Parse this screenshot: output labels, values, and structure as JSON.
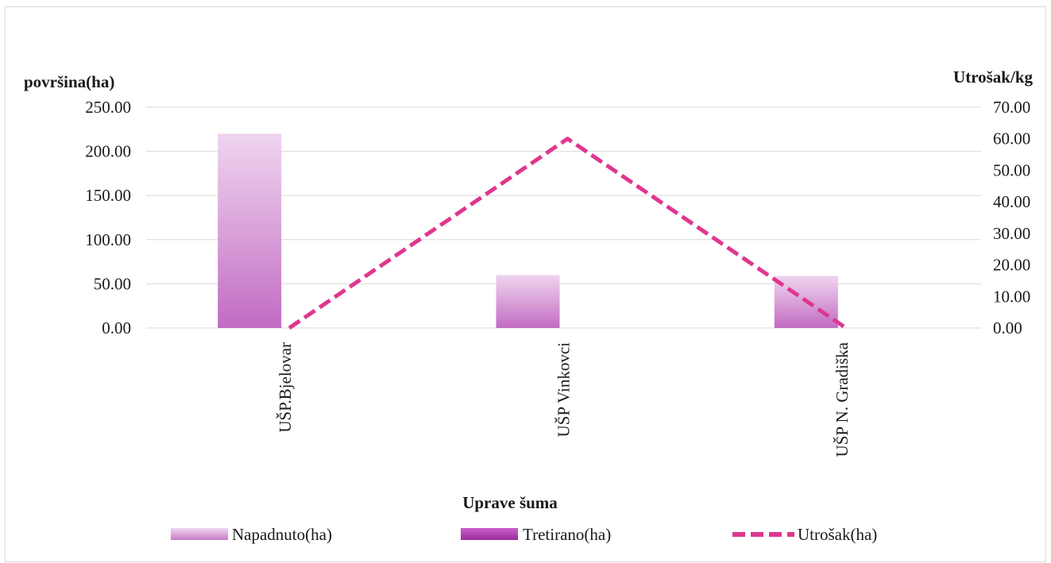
{
  "chart_data": {
    "type": "bar",
    "categories": [
      "UŠP.Bjelovar",
      "UŠP Vinkovci",
      "UŠP N. Gradiška"
    ],
    "series": [
      {
        "name": "Napadnuto(ha)",
        "type": "bar",
        "axis": "left",
        "values": [
          220.0,
          60.0,
          59.0
        ],
        "color": "#c877c8"
      },
      {
        "name": "Tretirano(ha)",
        "type": "bar",
        "axis": "left",
        "values": [
          0.0,
          0.0,
          0.0
        ],
        "color": "#b03cb0"
      },
      {
        "name": "Utrošak(ha)",
        "type": "line",
        "axis": "right",
        "style": "dashed",
        "values": [
          0.0,
          60.0,
          0.0
        ],
        "color": "#e0368e"
      }
    ],
    "ylabel": "površina(ha)",
    "y2label": "Utrošak/kg",
    "xlabel": "Uprave šuma",
    "ylim": [
      0,
      250
    ],
    "y2lim": [
      0,
      70
    ],
    "yticks": [
      "0.00",
      "50.00",
      "100.00",
      "150.00",
      "200.00",
      "250.00"
    ],
    "y2ticks": [
      "0.00",
      "10.00",
      "20.00",
      "30.00",
      "40.00",
      "50.00",
      "60.00",
      "70.00"
    ],
    "grid": "horizontal",
    "legend_position": "bottom"
  }
}
